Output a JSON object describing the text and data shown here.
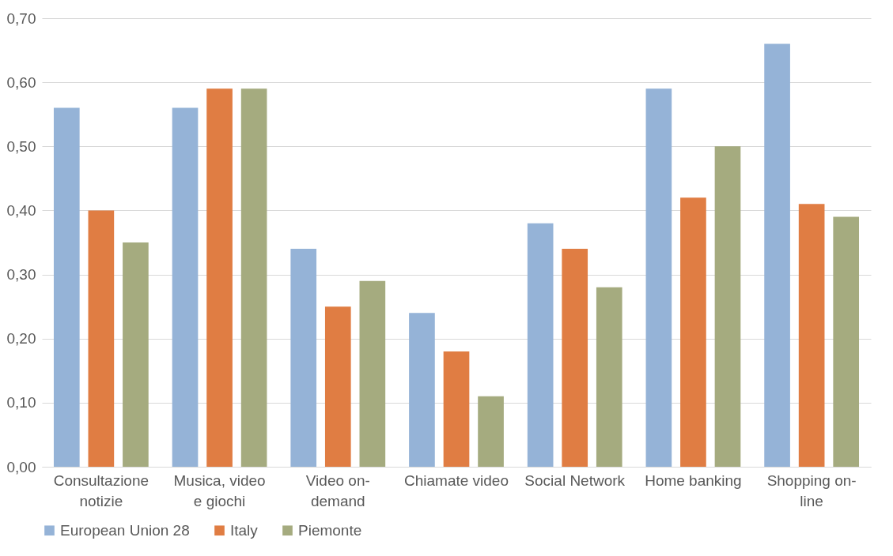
{
  "chart_data": {
    "type": "bar",
    "categories": [
      "Consultazione notizie",
      "Musica, video e giochi",
      "Video on-demand",
      "Chiamate video",
      "Social Network",
      "Home banking",
      "Shopping on-line"
    ],
    "series": [
      {
        "name": "European Union 28",
        "color": "#95b3d7",
        "values": [
          0.56,
          0.56,
          0.34,
          0.24,
          0.38,
          0.59,
          0.66
        ]
      },
      {
        "name": "Italy",
        "color": "#e07d43",
        "values": [
          0.4,
          0.59,
          0.25,
          0.18,
          0.34,
          0.42,
          0.41
        ]
      },
      {
        "name": "Piemonte",
        "color": "#a5ab7f",
        "values": [
          0.35,
          0.59,
          0.29,
          0.11,
          0.28,
          0.5,
          0.39
        ]
      }
    ],
    "ylim": [
      0,
      0.7
    ],
    "yticks": [
      {
        "value": 0,
        "label": "0,00"
      },
      {
        "value": 0.1,
        "label": "0,10"
      },
      {
        "value": 0.2,
        "label": "0,20"
      },
      {
        "value": 0.3,
        "label": "0,30"
      },
      {
        "value": 0.4,
        "label": "0,40"
      },
      {
        "value": 0.5,
        "label": "0,50"
      },
      {
        "value": 0.6,
        "label": "0,60"
      },
      {
        "value": 0.7,
        "label": "0,70"
      }
    ],
    "grid": "y",
    "legend": "bottom"
  }
}
